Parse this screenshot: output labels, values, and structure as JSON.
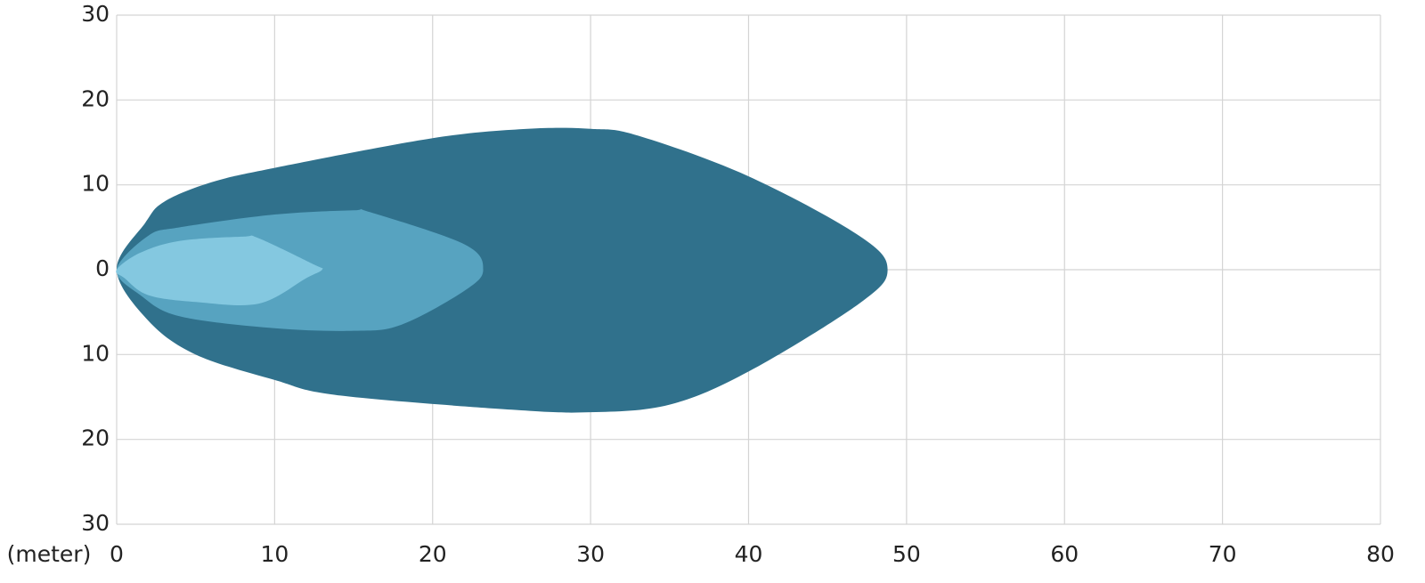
{
  "chart_data": {
    "type": "area",
    "xlabel": "(meter)",
    "xlim": [
      0,
      80
    ],
    "xticks": [
      0,
      10,
      20,
      30,
      40,
      50,
      60,
      70,
      80
    ],
    "ylim": [
      -30,
      30
    ],
    "yticks": [
      {
        "value": -30,
        "label": "30"
      },
      {
        "value": -20,
        "label": "20"
      },
      {
        "value": -10,
        "label": "10"
      },
      0,
      10,
      20,
      30
    ],
    "grid": true,
    "series": [
      {
        "color": "#30718c",
        "x": [
          0,
          1.8,
          3,
          6,
          10,
          20,
          26,
          30,
          33,
          40,
          47,
          48.8,
          47,
          40,
          35,
          30,
          25,
          14,
          10,
          5,
          2
        ],
        "values": [
          0,
          5.5,
          8,
          10.3,
          12,
          15.5,
          16.6,
          16.6,
          15.8,
          11,
          4,
          0,
          -4,
          -12,
          -15.9,
          -16.8,
          -16.5,
          -14.8,
          -13,
          -10,
          -6
        ]
      },
      {
        "color": "#57a3c0",
        "x": [
          0,
          2,
          4,
          10,
          15,
          16,
          22,
          23.2,
          22,
          18,
          15,
          10,
          4,
          1.5
        ],
        "values": [
          0,
          4,
          5,
          6.5,
          7,
          6.8,
          3,
          0,
          -2.5,
          -6.5,
          -7.2,
          -6.9,
          -5.5,
          -3
        ]
      },
      {
        "color": "#84c8e0",
        "x": [
          0,
          1.5,
          4,
          8,
          9,
          12.5,
          13,
          12,
          9,
          5,
          2,
          0.5
        ],
        "values": [
          0,
          2,
          3.4,
          3.9,
          3.7,
          0.6,
          0,
          -1,
          -4,
          -3.8,
          -3,
          -1
        ]
      }
    ]
  }
}
